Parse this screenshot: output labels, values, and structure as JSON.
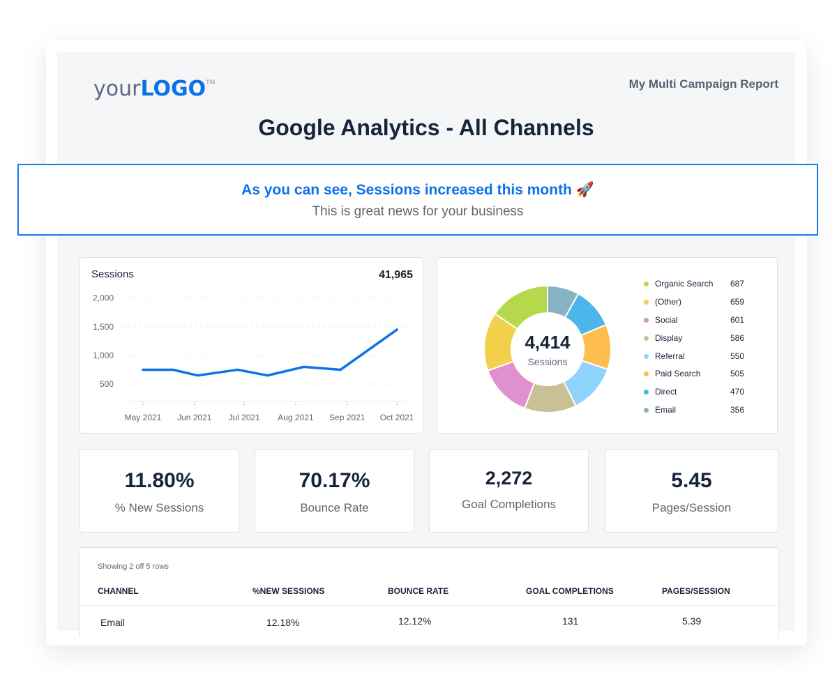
{
  "header": {
    "logo_text_light": "your",
    "logo_text_bold": "LOGO",
    "logo_tm": "TM",
    "report_name": "My Multi Campaign Report",
    "title": "Google Analytics - All Channels"
  },
  "callout": {
    "headline": "As you can see, Sessions increased this month 🚀",
    "subtext": "This is great news for your business"
  },
  "colors": {
    "accent": "#0b72e7",
    "line": "#0b72e7"
  },
  "chart_data": [
    {
      "type": "line",
      "title": "Sessions",
      "total": "41,965",
      "yticks": [
        "2,000",
        "1,500",
        "1,000",
        "500"
      ],
      "ylim": [
        0,
        2000
      ],
      "grid": true,
      "xticks": [
        "May 2021",
        "Jun 2021",
        "Jul 2021",
        "Aug 2021",
        "Sep 2021",
        "Oct 2021"
      ],
      "x": [
        "2021-05-01",
        "2021-05-19",
        "2021-06-03",
        "2021-06-27",
        "2021-07-15",
        "2021-08-06",
        "2021-08-28",
        "2021-10-01"
      ],
      "values": [
        750,
        750,
        650,
        750,
        650,
        800,
        750,
        1450
      ]
    },
    {
      "type": "pie",
      "donut": true,
      "center_value": "4,414",
      "center_label": "Sessions",
      "legend": "right",
      "slices": [
        {
          "name": "Organic Search",
          "value": 687,
          "color": "#b5d94a"
        },
        {
          "name": "(Other)",
          "value": 659,
          "color": "#f2d04c"
        },
        {
          "name": "Social",
          "value": 601,
          "color": "#e090cf"
        },
        {
          "name": "Display",
          "value": 586,
          "color": "#c9c095"
        },
        {
          "name": "Referral",
          "value": 550,
          "color": "#8dd3fc"
        },
        {
          "name": "Paid Search",
          "value": 505,
          "color": "#fdbd4f"
        },
        {
          "name": "Direct",
          "value": 470,
          "color": "#4ab6ea"
        },
        {
          "name": "Email",
          "value": 356,
          "color": "#86b2c4"
        }
      ],
      "draw_order": [
        "Email",
        "Direct",
        "Paid Search",
        "Referral",
        "Display",
        "Social",
        "(Other)",
        "Organic Search"
      ]
    }
  ],
  "kpis": [
    {
      "value": "11.80%",
      "label": "% New Sessions"
    },
    {
      "value": "70.17%",
      "label": "Bounce Rate"
    },
    {
      "value": "2,272",
      "label": "Goal Completions"
    },
    {
      "value": "5.45",
      "label": "Pages/Session"
    }
  ],
  "table": {
    "caption": "Showing 2 off 5 rows",
    "columns": [
      "CHANNEL",
      "%NEW SESSIONS",
      "BOUNCE RATE",
      "GOAL COMPLETIONS",
      "PAGES/SESSION"
    ],
    "rows": [
      [
        "Email",
        "12.18%",
        "12.12%",
        "131",
        "5.39"
      ]
    ]
  }
}
